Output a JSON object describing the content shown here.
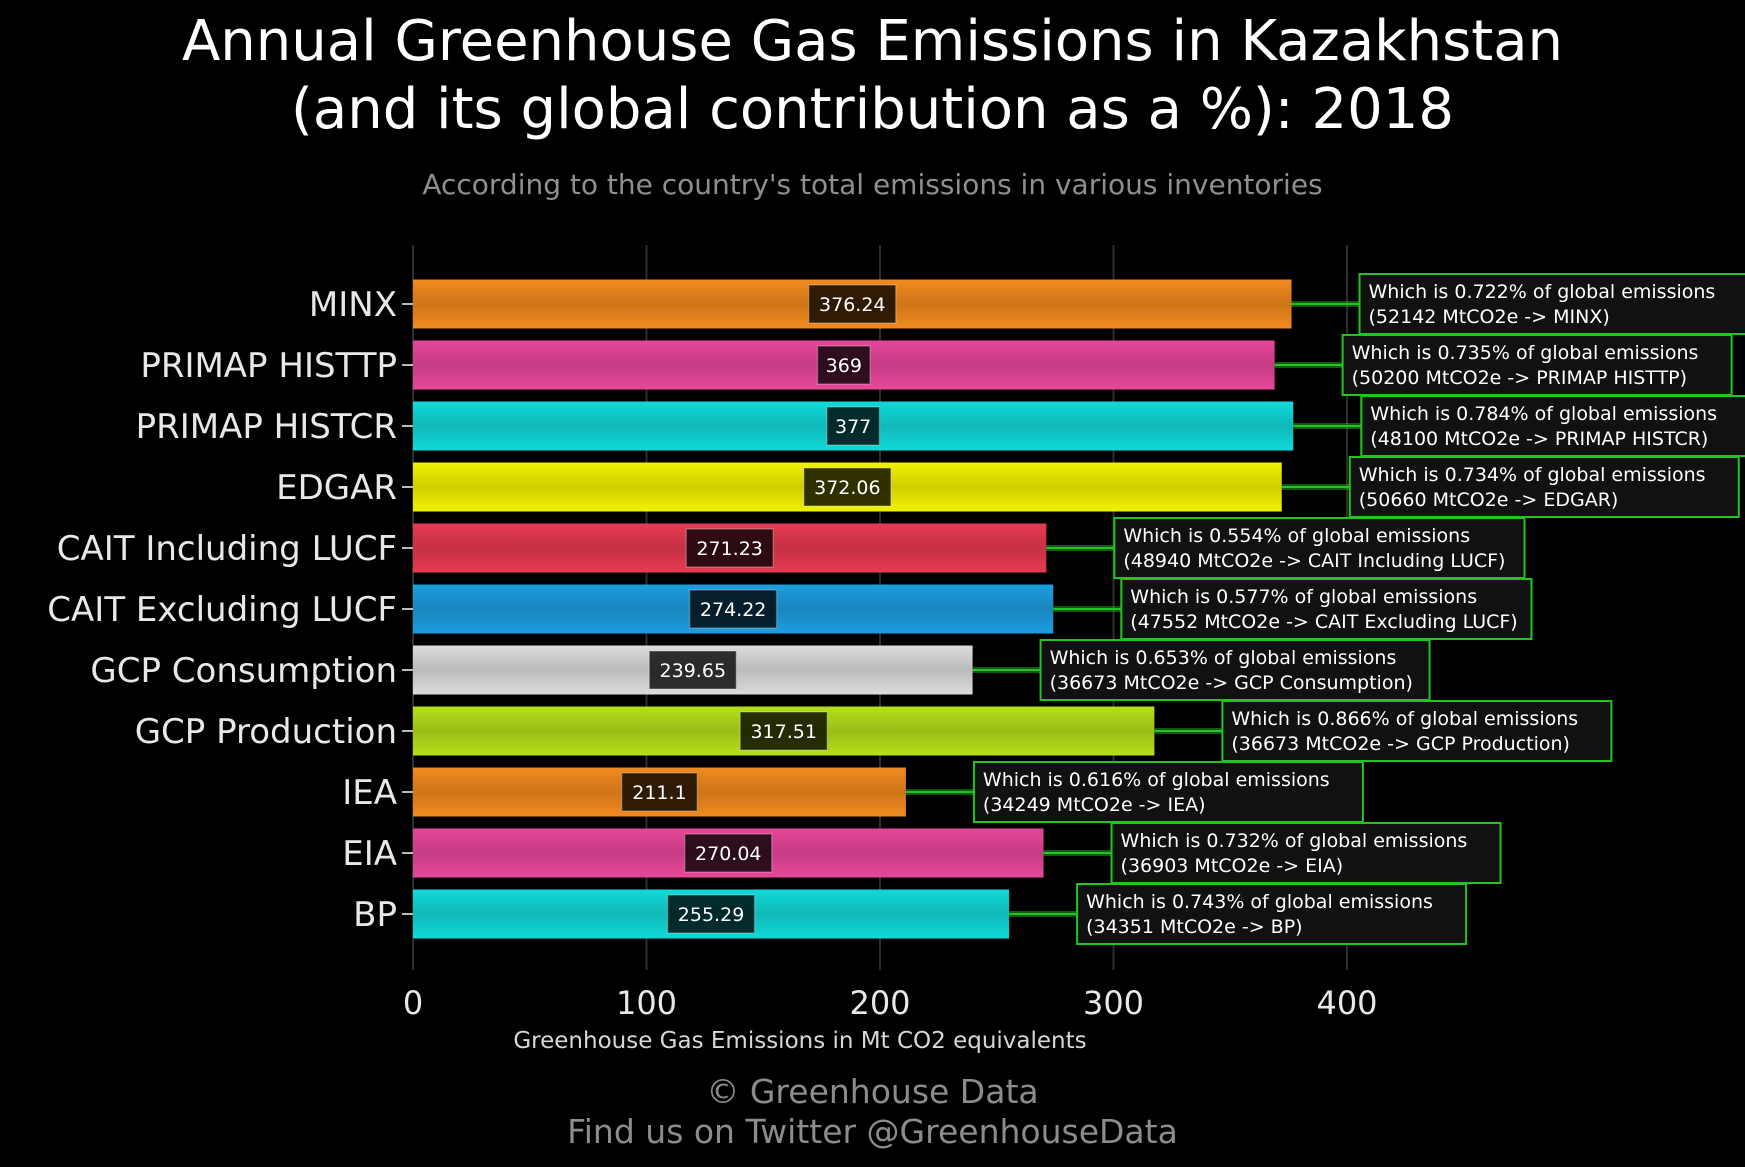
{
  "title_line1": "Annual Greenhouse Gas Emissions in Kazakhstan",
  "title_line2": "(and its global contribution as a %): 2018",
  "subtitle": "According to the country's total emissions in various inventories",
  "footer_line1": "© Greenhouse Data",
  "footer_line2": "Find us on Twitter @GreenhouseData",
  "chart_data": {
    "type": "bar",
    "orientation": "horizontal",
    "xlabel": "Greenhouse Gas Emissions in Mt CO2 equivalents",
    "xlim": [
      0,
      450
    ],
    "xticks": [
      0,
      100,
      200,
      300,
      400
    ],
    "grid": true,
    "categories": [
      "MINX",
      "PRIMAP HISTTP",
      "PRIMAP HISTCR",
      "EDGAR",
      "CAIT Including LUCF",
      "CAIT Excluding LUCF",
      "GCP Consumption",
      "GCP Production",
      "IEA",
      "EIA",
      "BP"
    ],
    "values": [
      376.24,
      369,
      377,
      372.06,
      271.23,
      274.22,
      239.65,
      317.51,
      211.1,
      270.04,
      255.29
    ],
    "value_labels": [
      "376.24",
      "369",
      "377",
      "372.06",
      "271.23",
      "274.22",
      "239.65",
      "317.51",
      "211.1",
      "270.04",
      "255.29"
    ],
    "colors": [
      "#f28a1e",
      "#e8479a",
      "#12d9d9",
      "#f2f200",
      "#e83a52",
      "#1d9ee0",
      "#dcdcdc",
      "#b5e01a",
      "#f28a1e",
      "#e8479a",
      "#12d9d9"
    ],
    "annotations": [
      {
        "line1": "Which is 0.722% of global emissions",
        "line2": "(52142 MtCO2e -> MINX)"
      },
      {
        "line1": "Which is 0.735% of global emissions",
        "line2": "(50200 MtCO2e -> PRIMAP HISTTP)"
      },
      {
        "line1": "Which is 0.784% of global emissions",
        "line2": "(48100 MtCO2e -> PRIMAP HISTCR)"
      },
      {
        "line1": "Which is 0.734% of global emissions",
        "line2": "(50660 MtCO2e -> EDGAR)"
      },
      {
        "line1": "Which is 0.554% of global emissions",
        "line2": "(48940 MtCO2e -> CAIT Including LUCF)"
      },
      {
        "line1": "Which is 0.577% of global emissions",
        "line2": "(47552 MtCO2e -> CAIT Excluding LUCF)"
      },
      {
        "line1": "Which is 0.653% of global emissions",
        "line2": "(36673 MtCO2e -> GCP Consumption)"
      },
      {
        "line1": "Which is 0.866% of global emissions",
        "line2": "(36673 MtCO2e -> GCP Production)"
      },
      {
        "line1": "Which is 0.616% of global emissions",
        "line2": "(34249 MtCO2e -> IEA)"
      },
      {
        "line1": "Which is 0.732% of global emissions",
        "line2": "(36903 MtCO2e -> EIA)"
      },
      {
        "line1": "Which is 0.743% of global emissions",
        "line2": "(34351 MtCO2e -> BP)"
      }
    ],
    "annotation_border_color": "#22c422",
    "connector_color": "#22c422"
  }
}
